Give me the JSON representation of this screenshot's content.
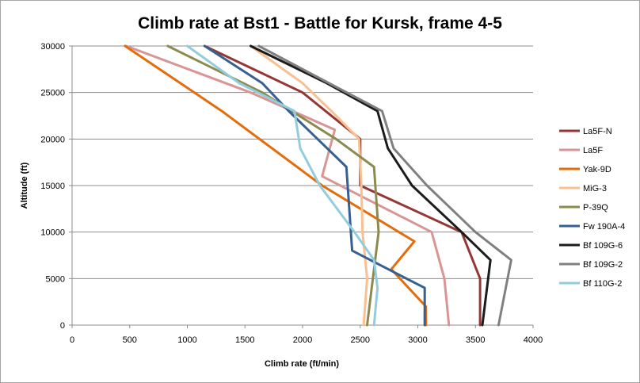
{
  "chart_data": {
    "type": "line",
    "title": "Climb rate at Bst1 - Battle for Kursk, frame 4-5",
    "xlabel": "Climb rate (ft/min)",
    "ylabel": "Altitude (ft)",
    "xlim": [
      0,
      4000
    ],
    "ylim": [
      0,
      30000
    ],
    "xticks": [
      0,
      500,
      1000,
      1500,
      2000,
      2500,
      3000,
      3500,
      4000
    ],
    "yticks": [
      0,
      5000,
      10000,
      15000,
      20000,
      25000,
      30000
    ],
    "grid": "horizontal",
    "legend_position": "right",
    "series": [
      {
        "name": "La5F-N",
        "color": "#953735",
        "points": [
          [
            3540,
            0
          ],
          [
            3540,
            5000
          ],
          [
            3380,
            10000
          ],
          [
            2500,
            15000
          ],
          [
            2500,
            20000
          ],
          [
            2000,
            25000
          ],
          [
            1150,
            30000
          ]
        ]
      },
      {
        "name": "La5F",
        "color": "#d99594",
        "points": [
          [
            3270,
            0
          ],
          [
            3230,
            5000
          ],
          [
            3120,
            10000
          ],
          [
            2170,
            16000
          ],
          [
            2280,
            21000
          ],
          [
            1550,
            25000
          ],
          [
            470,
            30000
          ]
        ]
      },
      {
        "name": "Yak-9D",
        "color": "#e46c0a",
        "points": [
          [
            3070,
            0
          ],
          [
            3070,
            2000
          ],
          [
            2770,
            6000
          ],
          [
            2970,
            9000
          ],
          [
            2170,
            15000
          ],
          [
            1300,
            23000
          ],
          [
            460,
            30000
          ]
        ]
      },
      {
        "name": "MiG-3",
        "color": "#fac090",
        "points": [
          [
            2530,
            0
          ],
          [
            2560,
            5000
          ],
          [
            2520,
            10000
          ],
          [
            2510,
            15000
          ],
          [
            2490,
            20000
          ],
          [
            2250,
            23000
          ],
          [
            2000,
            26000
          ],
          [
            1550,
            30000
          ]
        ]
      },
      {
        "name": "P-39Q",
        "color": "#8b8b4f",
        "points": [
          [
            2560,
            0
          ],
          [
            2620,
            6000
          ],
          [
            2660,
            10000
          ],
          [
            2620,
            17000
          ],
          [
            2290,
            20000
          ],
          [
            1650,
            25000
          ],
          [
            830,
            30000
          ]
        ]
      },
      {
        "name": "Fw 190A-4",
        "color": "#376092",
        "points": [
          [
            3060,
            0
          ],
          [
            3060,
            4000
          ],
          [
            2430,
            8000
          ],
          [
            2380,
            17000
          ],
          [
            1880,
            23000
          ],
          [
            1650,
            26000
          ],
          [
            1150,
            30000
          ]
        ]
      },
      {
        "name": "Bf 109G-6",
        "color": "#1c1c1c",
        "points": [
          [
            3560,
            0
          ],
          [
            3630,
            7000
          ],
          [
            3380,
            10000
          ],
          [
            2950,
            15000
          ],
          [
            2740,
            19000
          ],
          [
            2650,
            23000
          ],
          [
            2210,
            26000
          ],
          [
            1550,
            30000
          ]
        ]
      },
      {
        "name": "Bf 109G-2",
        "color": "#808080",
        "points": [
          [
            3700,
            0
          ],
          [
            3810,
            7000
          ],
          [
            3500,
            10000
          ],
          [
            3080,
            15000
          ],
          [
            2790,
            19000
          ],
          [
            2690,
            23000
          ],
          [
            2230,
            26000
          ],
          [
            1620,
            30000
          ]
        ]
      },
      {
        "name": "Bf 110G-2",
        "color": "#93cddd",
        "points": [
          [
            2620,
            0
          ],
          [
            2650,
            4000
          ],
          [
            2620,
            7000
          ],
          [
            2450,
            10000
          ],
          [
            2150,
            15000
          ],
          [
            1980,
            19000
          ],
          [
            1930,
            23000
          ],
          [
            1450,
            26000
          ],
          [
            1000,
            30000
          ]
        ]
      }
    ]
  }
}
